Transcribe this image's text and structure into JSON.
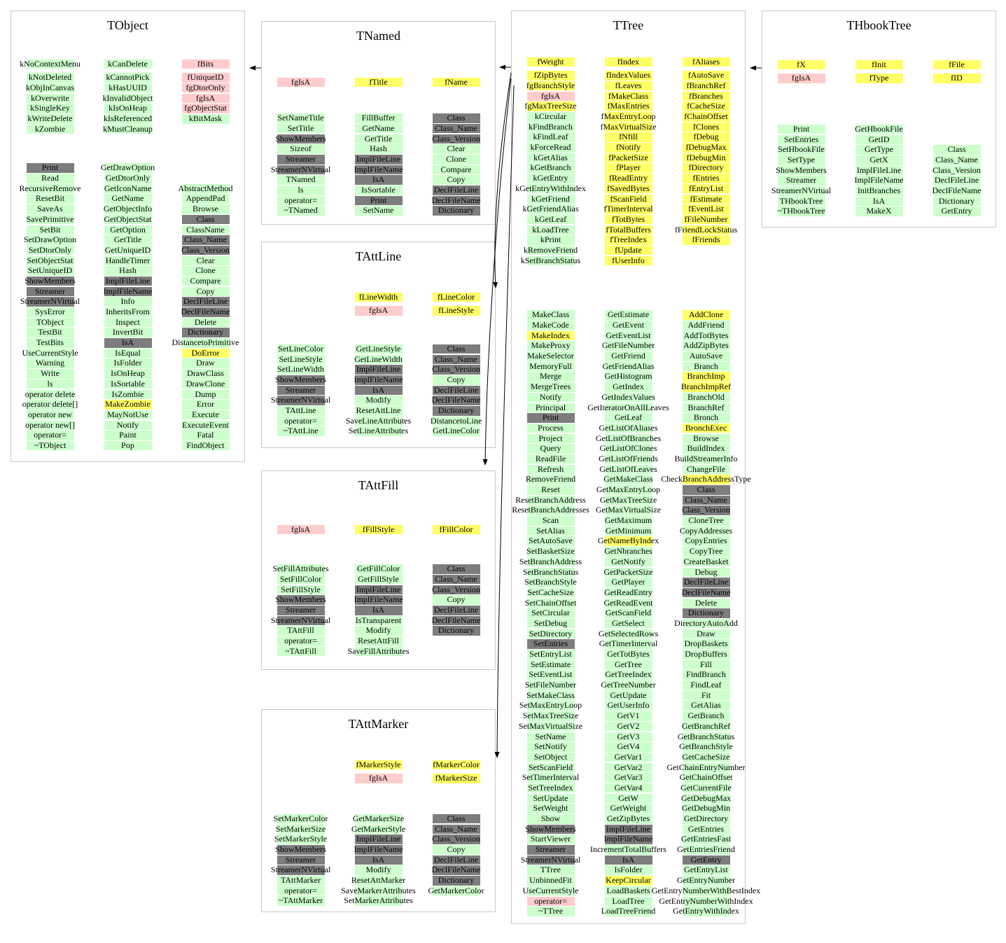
{
  "colors": {
    "data_member_yellow": "#ffff66",
    "static_member_pink": "#ffcccc",
    "method_green": "#ccffcc",
    "classdef_gray": "#7d7d7d",
    "box_border": "#c9c9c9",
    "arrow_black": "#000000"
  },
  "arrows": [
    {
      "from": "TNamed",
      "to": "TObject"
    },
    {
      "from": "TTree",
      "to": "TNamed"
    },
    {
      "from": "THbookTree",
      "to": "TTree"
    },
    {
      "from": "TTree",
      "to": "TAttLine"
    },
    {
      "from": "TTree",
      "to": "TAttFill"
    },
    {
      "from": "TTree",
      "to": "TAttMarker"
    }
  ],
  "classes": [
    {
      "name": "TObject",
      "data_cols": [
        [
          "kNoContextMenu|g",
          "kNotDeleted|g",
          "kObjInCanvas|g",
          "kOverwrite|g",
          "kSingleKey|g",
          "kWriteDelete|g",
          "kZombie|g"
        ],
        [
          "kCanDelete|g",
          "kCannotPick|g",
          "kHasUUID|g",
          "kInvalidObject|g",
          "kIsOnHeap|g",
          "kIsReferenced|g",
          "kMustCleanup|g"
        ],
        [
          "fBits|p",
          "fUniqueID|p",
          "fgDtorOnly|p",
          "fgIsA|p",
          "fgObjectStat|p",
          "kBitMask|g"
        ]
      ],
      "method_cols": [
        [
          "Print|k",
          "Read|g",
          "RecursiveRemove|g",
          "ResetBit|g",
          "SaveAs|g",
          "SavePrimitive|g",
          "SetBit|g",
          "SetDrawOption|g",
          "SetDtorOnly|g",
          "SetObjectStat|g",
          "SetUniqueID|g",
          "ShowMembers|k",
          "Streamer|k",
          "StreamerNVirtual|k",
          "SysError|g",
          "TObject|g",
          "TestBit|g",
          "TestBits|g",
          "UseCurrentStyle|g",
          "Warning|g",
          "Write|g",
          "ls|g",
          "operator delete|g",
          "operator delete[]|g",
          "operator new|g",
          "operator new[]|g",
          "operator=|g",
          "~TObject|g"
        ],
        [
          "GetDrawOption|g",
          "GetDtorOnly|g",
          "GetIconName|g",
          "GetName|g",
          "GetObjectInfo|g",
          "GetObjectStat|g",
          "GetOption|g",
          "GetTitle|g",
          "GetUniqueID|g",
          "HandleTimer|g",
          "Hash|g",
          "ImplFileLine|k",
          "ImplFileName|k",
          "Info|g",
          "InheritsFrom|g",
          "Inspect|g",
          "InvertBit|g",
          "IsA|k",
          "IsEqual|g",
          "IsFolder|g",
          "IsOnHeap|g",
          "IsSortable|g",
          "IsZombie|g",
          "MakeZombie|y",
          "MayNotUse|g",
          "Notify|g",
          "Paint|g",
          "Pop|g"
        ],
        [
          "",
          "",
          "AbstractMethod|g",
          "AppendPad|g",
          "Browse|g",
          "Class|k",
          "ClassName|g",
          "Class_Name|k",
          "Class_Version|k",
          "Clear|g",
          "Clone|g",
          "Compare|g",
          "Copy|g",
          "DeclFileLine|k",
          "DeclFileName|k",
          "Delete|g",
          "Dictionary|k",
          "DistancetoPrimitive|g",
          "DoError|y",
          "Draw|g",
          "DrawClass|g",
          "DrawClone|g",
          "Dump|g",
          "Error|g",
          "Execute|g",
          "ExecuteEvent|g",
          "Fatal|g",
          "FindObject|g"
        ]
      ]
    },
    {
      "name": "TNamed",
      "data_cols": [
        [
          "fgIsA|p"
        ],
        [
          "fTitle|y"
        ],
        [
          "fName|y"
        ]
      ],
      "method_cols": [
        [
          "SetNameTitle|g",
          "SetTitle|g",
          "ShowMembers|k",
          "Sizeof|g",
          "Streamer|k",
          "StreamerNVirtual|k",
          "TNamed|g",
          "ls|g",
          "operator=|g",
          "~TNamed|g"
        ],
        [
          "FillBuffer|g",
          "GetName|g",
          "GetTitle|g",
          "Hash|g",
          "ImplFileLine|k",
          "ImplFileName|k",
          "IsA|k",
          "IsSortable|g",
          "Print|k",
          "SetName|g"
        ],
        [
          "Class|k",
          "Class_Name|k",
          "Class_Version|k",
          "Clear|g",
          "Clone|g",
          "Compare|g",
          "Copy|g",
          "DeclFileLine|k",
          "DeclFileName|k",
          "Dictionary|k"
        ]
      ]
    },
    {
      "name": "TAttLine",
      "data_cols": [
        [],
        [
          "fLineWidth|y",
          "fgIsA|p"
        ],
        [
          "fLineColor|y",
          "fLineStyle|y"
        ]
      ],
      "method_cols": [
        [
          "SetLineColor|g",
          "SetLineStyle|g",
          "SetLineWidth|g",
          "ShowMembers|k",
          "Streamer|k",
          "StreamerNVirtual|k",
          "TAttLine|g",
          "operator=|g",
          "~TAttLine|g"
        ],
        [
          "GetLineStyle|g",
          "GetLineWidth|g",
          "ImplFileLine|k",
          "ImplFileName|k",
          "IsA|k",
          "Modify|g",
          "ResetAttLine|g",
          "SaveLineAttributes|g",
          "SetLineAttributes|g"
        ],
        [
          "Class|k",
          "Class_Name|k",
          "Class_Version|k",
          "Copy|g",
          "DeclFileLine|k",
          "DeclFileName|k",
          "Dictionary|k",
          "DistancetoLine|g",
          "GetLineColor|g"
        ]
      ]
    },
    {
      "name": "TAttFill",
      "data_cols": [
        [
          "fgIsA|p"
        ],
        [
          "fFillStyle|y"
        ],
        [
          "fFillColor|y"
        ]
      ],
      "method_cols": [
        [
          "SetFillAttributes|g",
          "SetFillColor|g",
          "SetFillStyle|g",
          "ShowMembers|k",
          "Streamer|k",
          "StreamerNVirtual|k",
          "TAttFill|g",
          "operator=|g",
          "~TAttFill|g"
        ],
        [
          "GetFillColor|g",
          "GetFillStyle|g",
          "ImplFileLine|k",
          "ImplFileName|k",
          "IsA|k",
          "IsTransparent|g",
          "Modify|g",
          "ResetAttFill|g",
          "SaveFillAttributes|g"
        ],
        [
          "Class|k",
          "Class_Name|k",
          "Class_Version|k",
          "Copy|g",
          "DeclFileLine|k",
          "DeclFileName|k",
          "Dictionary|k"
        ]
      ]
    },
    {
      "name": "TAttMarker",
      "data_cols": [
        [],
        [
          "fMarkerStyle|y",
          "fgIsA|p"
        ],
        [
          "fMarkerColor|y",
          "fMarkerSize|y"
        ]
      ],
      "method_cols": [
        [
          "SetMarkerColor|g",
          "SetMarkerSize|g",
          "SetMarkerStyle|g",
          "ShowMembers|k",
          "Streamer|k",
          "StreamerNVirtual|k",
          "TAttMarker|g",
          "operator=|g",
          "~TAttMarker|g"
        ],
        [
          "GetMarkerSize|g",
          "GetMarkerStyle|g",
          "ImplFileLine|k",
          "ImplFileName|k",
          "IsA|k",
          "Modify|g",
          "ResetAttMarker|g",
          "SaveMarkerAttributes|g",
          "SetMarkerAttributes|g"
        ],
        [
          "Class|k",
          "Class_Name|k",
          "Class_Version|k",
          "Copy|g",
          "DeclFileLine|k",
          "DeclFileName|k",
          "Dictionary|k",
          "GetMarkerColor|g"
        ]
      ]
    },
    {
      "name": "TTree",
      "data_cols": [
        [
          "fWeight|y",
          "fZipBytes|y",
          "fgBranchStyle|y",
          "fgIsA|p",
          "fgMaxTreeSize|y",
          "kCircular|g",
          "kFindBranch|g",
          "kFindLeaf|g",
          "kForceRead|g",
          "kGetAlias|g",
          "kGetBranch|g",
          "kGetEntry|g",
          "kGetEntryWithIndex|g",
          "kGetFriend|g",
          "kGetFriendAlias|g",
          "kGetLeaf|g",
          "kLoadTree|g",
          "kPrint|g",
          "kRemoveFriend|g",
          "kSetBranchStatus|g"
        ],
        [
          "fIndex|y",
          "fIndexValues|y",
          "fLeaves|y",
          "fMakeClass|y",
          "fMaxEntries|y",
          "fMaxEntryLoop|y",
          "fMaxVirtualSize|y",
          "fNfill|y",
          "fNotify|y",
          "fPacketSize|y",
          "fPlayer|y",
          "fReadEntry|y",
          "fSavedBytes|y",
          "fScanField|y",
          "fTimerInterval|y",
          "fTotBytes|y",
          "fTotalBuffers|y",
          "fTreeIndex|y",
          "fUpdate|y",
          "fUserInfo|y"
        ],
        [
          "fAliases|y",
          "fAutoSave|y",
          "fBranchRef|y",
          "fBranches|y",
          "fCacheSize|y",
          "fChainOffset|y",
          "fClones|y",
          "fDebug|y",
          "fDebugMax|y",
          "fDebugMin|y",
          "fDirectory|y",
          "fEntries|y",
          "fEntryList|y",
          "fEstimate|y",
          "fEventList|y",
          "fFileNumber|y",
          "fFriendLockStatus|y",
          "fFriends|y"
        ]
      ],
      "method_cols": [
        [
          "MakeClass|g",
          "MakeCode|g",
          "MakeIndex|y",
          "MakeProxy|g",
          "MakeSelector|g",
          "MemoryFull|g",
          "Merge|g",
          "MergeTrees|g",
          "Notify|g",
          "Principal|g",
          "Print|k",
          "Process|g",
          "Project|g",
          "Query|g",
          "ReadFile|g",
          "Refresh|g",
          "RemoveFriend|g",
          "Reset|g",
          "ResetBranchAddress|g",
          "ResetBranchAddresses|g",
          "Scan|g",
          "SetAlias|g",
          "SetAutoSave|g",
          "SetBasketSize|g",
          "SetBranchAddress|g",
          "SetBranchStatus|g",
          "SetBranchStyle|g",
          "SetCacheSize|g",
          "SetChainOffset|g",
          "SetCircular|g",
          "SetDebug|g",
          "SetDirectory|g",
          "SetEntries|k",
          "SetEntryList|g",
          "SetEstimate|g",
          "SetEventList|g",
          "SetFileNumber|g",
          "SetMakeClass|g",
          "SetMaxEntryLoop|g",
          "SetMaxTreeSize|g",
          "SetMaxVirtualSize|g",
          "SetName|g",
          "SetNotify|g",
          "SetObject|g",
          "SetScanField|g",
          "SetTimerInterval|g",
          "SetTreeIndex|g",
          "SetUpdate|g",
          "SetWeight|g",
          "Show|g",
          "ShowMembers|k",
          "StartViewer|g",
          "Streamer|k",
          "StreamerNVirtual|k",
          "TTree|g",
          "UnbinnedFit|g",
          "UseCurrentStyle|g",
          "operator=|p",
          "~TTree|g"
        ],
        [
          "GetEstimate|g",
          "GetEvent|g",
          "GetEventList|g",
          "GetFileNumber|g",
          "GetFriend|g",
          "GetFriendAlias|g",
          "GetHistogram|g",
          "GetIndex|g",
          "GetIndexValues|g",
          "GetIteratorOnAllLeaves|g",
          "GetLeaf|g",
          "GetListOfAliases|g",
          "GetListOfBranches|g",
          "GetListOfClones|g",
          "GetListOfFriends|g",
          "GetListOfLeaves|g",
          "GetMakeClass|g",
          "GetMaxEntryLoop|g",
          "GetMaxTreeSize|g",
          "GetMaxVirtualSize|g",
          "GetMaximum|g",
          "GetMinimum|g",
          "GetNameByIndex|y",
          "GetNbranches|g",
          "GetNotify|g",
          "GetPacketSize|g",
          "GetPlayer|g",
          "GetReadEntry|g",
          "GetReadEvent|g",
          "GetScanField|g",
          "GetSelect|g",
          "GetSelectedRows|g",
          "GetTimerInterval|g",
          "GetTotBytes|g",
          "GetTree|g",
          "GetTreeIndex|g",
          "GetTreeNumber|g",
          "GetUpdate|g",
          "GetUserInfo|g",
          "GetV1|g",
          "GetV2|g",
          "GetV3|g",
          "GetV4|g",
          "GetVar1|g",
          "GetVar2|g",
          "GetVar3|g",
          "GetVar4|g",
          "GetW|g",
          "GetWeight|g",
          "GetZipBytes|g",
          "ImplFileLine|k",
          "ImplFileName|k",
          "IncrementTotalBuffers|g",
          "IsA|k",
          "IsFolder|g",
          "KeepCircular|y",
          "LoadBaskets|g",
          "LoadTree|g",
          "LoadTreeFriend|g"
        ],
        [
          "AddClone|y",
          "AddFriend|g",
          "AddTotBytes|g",
          "AddZipBytes|g",
          "AutoSave|g",
          "Branch|g",
          "BranchImp|y",
          "BranchImpRef|y",
          "BranchOld|g",
          "BranchRef|g",
          "Bronch|g",
          "BronchExec|y",
          "Browse|g",
          "BuildIndex|g",
          "BuildStreamerInfo|g",
          "ChangeFile|g",
          "CheckBranchAddressType|y",
          "Class|k",
          "Class_Name|k",
          "Class_Version|k",
          "CloneTree|g",
          "CopyAddresses|g",
          "CopyEntries|g",
          "CopyTree|g",
          "CreateBasket|g",
          "Debug|g",
          "DeclFileLine|k",
          "DeclFileName|k",
          "Delete|g",
          "Dictionary|k",
          "DirectoryAutoAdd|g",
          "Draw|g",
          "DropBaskets|g",
          "DropBuffers|g",
          "Fill|g",
          "FindBranch|g",
          "FindLeaf|g",
          "Fit|g",
          "GetAlias|g",
          "GetBranch|g",
          "GetBranchRef|g",
          "GetBranchStatus|g",
          "GetBranchStyle|g",
          "GetCacheSize|g",
          "GetChainEntryNumber|g",
          "GetChainOffset|g",
          "GetCurrentFile|g",
          "GetDebugMax|g",
          "GetDebugMin|g",
          "GetDirectory|g",
          "GetEntries|g",
          "GetEntriesFast|g",
          "GetEntriesFriend|g",
          "GetEntry|k",
          "GetEntryList|g",
          "GetEntryNumber|g",
          "GetEntryNumberWithBestIndex|g",
          "GetEntryNumberWithIndex|g",
          "GetEntryWithIndex|g"
        ]
      ]
    },
    {
      "name": "THbookTree",
      "data_cols": [
        [
          "fX|y",
          "fgIsA|p"
        ],
        [
          "fInit|y",
          "fType|y"
        ],
        [
          "fFile|y",
          "fID|y"
        ]
      ],
      "method_cols": [
        [
          "Print|g",
          "SetEntries|g",
          "SetHbookFile|g",
          "SetType|g",
          "ShowMembers|g",
          "Streamer|g",
          "StreamerNVirtual|g",
          "THbookTree|g",
          "~THbookTree|g"
        ],
        [
          "GetHbookFile|g",
          "GetID|g",
          "GetType|g",
          "GetX|g",
          "ImplFileLine|g",
          "ImplFileName|g",
          "InitBranches|g",
          "IsA|g",
          "MakeX|g"
        ],
        [
          "",
          "",
          "Class|g",
          "Class_Name|g",
          "Class_Version|g",
          "DeclFileLine|g",
          "DeclFileName|g",
          "Dictionary|g",
          "GetEntry|g"
        ]
      ]
    }
  ]
}
